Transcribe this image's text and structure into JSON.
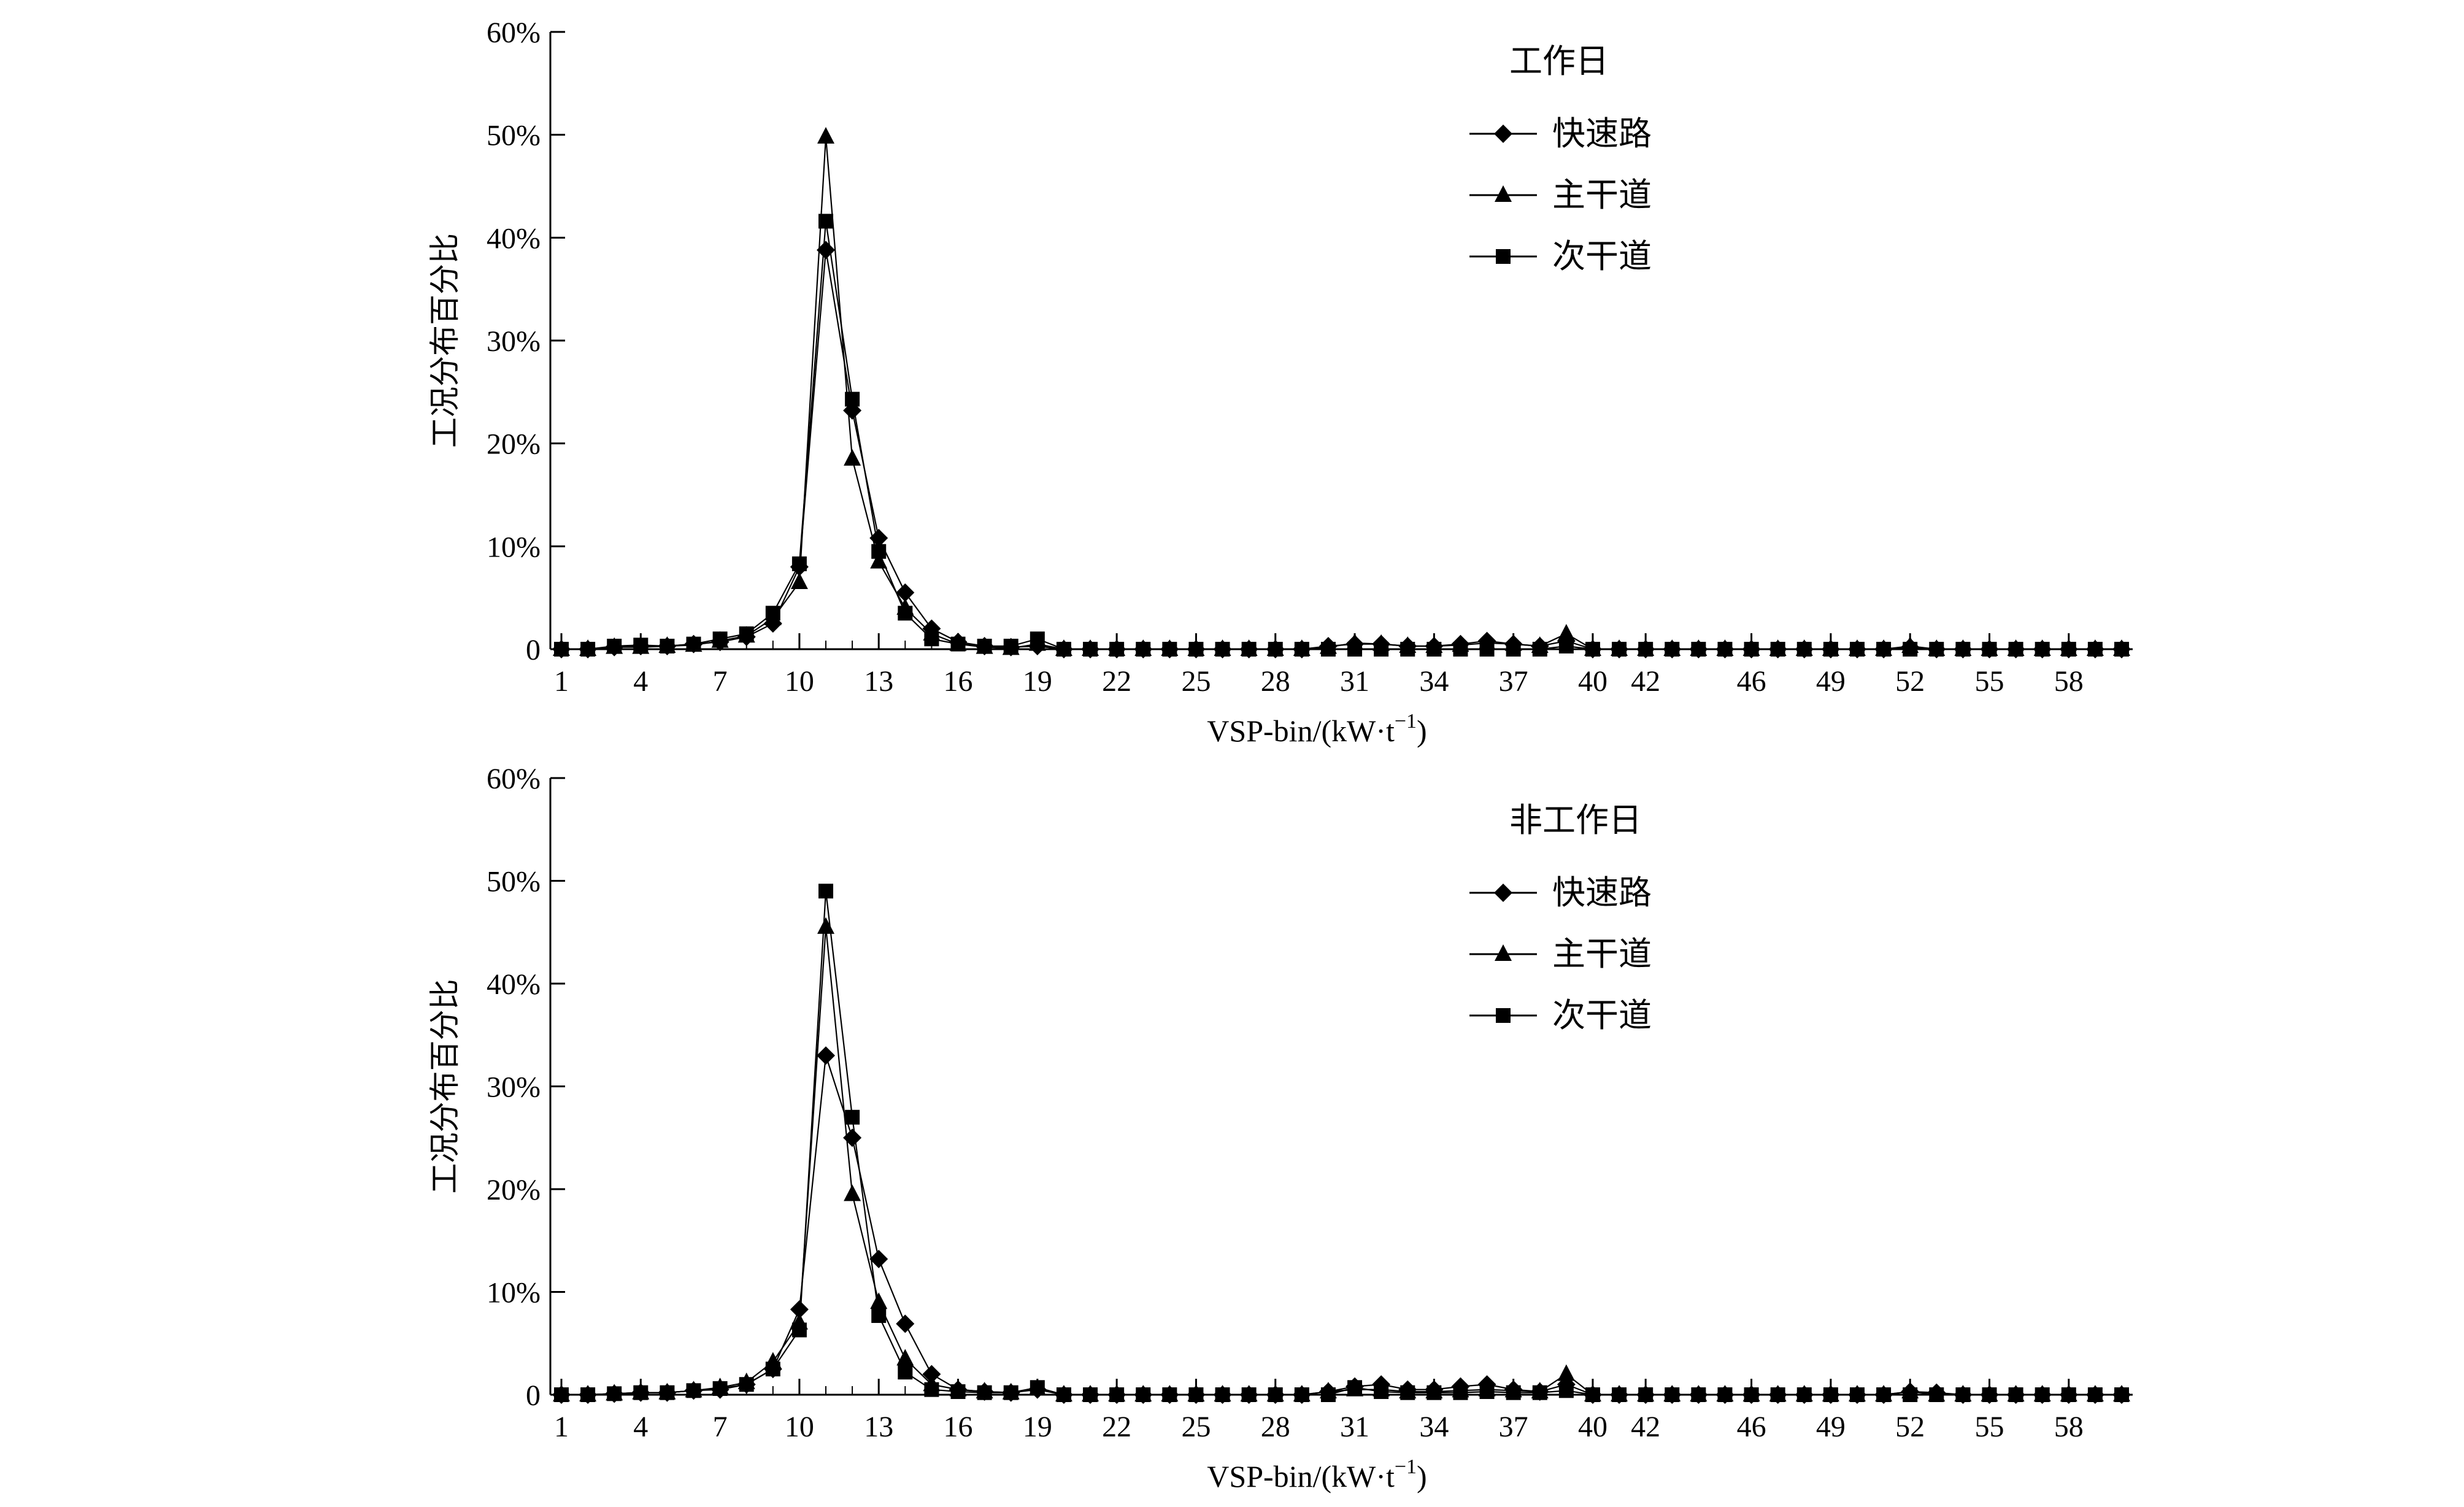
{
  "chart_data": [
    {
      "type": "line",
      "title": "",
      "legend_title": "工作日",
      "xlabel": "VSP-bin/(kW·t",
      "xlabel_sup": "−1",
      "xlabel_close": ")",
      "ylabel": "工况分布百分比",
      "xlim": [
        1,
        60
      ],
      "ylim": [
        0,
        60
      ],
      "x_ticks": [
        1,
        4,
        7,
        10,
        13,
        16,
        19,
        22,
        25,
        28,
        31,
        34,
        37,
        40,
        42,
        46,
        49,
        52,
        55,
        58
      ],
      "x_tick_labels": [
        "1",
        "4",
        "7",
        "10",
        "13",
        "16",
        "19",
        "22",
        "25",
        "28",
        "31",
        "34",
        "37",
        "40",
        "42",
        "46",
        "49",
        "52",
        "55",
        "58"
      ],
      "y_ticks": [
        0,
        10,
        20,
        30,
        40,
        50,
        60
      ],
      "y_tick_labels": [
        "0",
        "10%",
        "20%",
        "30%",
        "40%",
        "50%",
        "60%"
      ],
      "legend_position": "top-right",
      "grid": false,
      "series": [
        {
          "name": "快速路",
          "marker": "diamond",
          "values": [
            0,
            0,
            0.2,
            0.3,
            0.3,
            0.5,
            0.7,
            1.2,
            2.5,
            8,
            38.8,
            23.2,
            10.8,
            5.5,
            2,
            0.7,
            0.3,
            0.2,
            0.3,
            0,
            0,
            0,
            0,
            0,
            0,
            0,
            0,
            0,
            0,
            0.3,
            0.5,
            0.5,
            0.3,
            0.3,
            0.5,
            0.8,
            0.5,
            0.3,
            0.8,
            0,
            0,
            0,
            0,
            0,
            0,
            0,
            0,
            0,
            0,
            0,
            0,
            0.2,
            0,
            0,
            0,
            0,
            0,
            0,
            0,
            0
          ]
        },
        {
          "name": "主干道",
          "marker": "triangle",
          "values": [
            0,
            0,
            0.2,
            0.2,
            0.3,
            0.4,
            0.8,
            1.3,
            3,
            6.5,
            49.8,
            18.5,
            8.5,
            4,
            1.5,
            0.5,
            0.2,
            0.1,
            0.5,
            0,
            0,
            0,
            0,
            0,
            0,
            0,
            0,
            0,
            0,
            0.2,
            0.6,
            0.5,
            0.3,
            0.3,
            0.4,
            0.6,
            0.5,
            0.3,
            1.5,
            0,
            0,
            0,
            0,
            0,
            0,
            0,
            0,
            0,
            0,
            0,
            0,
            0.3,
            0,
            0,
            0,
            0,
            0,
            0,
            0,
            0
          ]
        },
        {
          "name": "次干道",
          "marker": "square",
          "values": [
            0,
            0,
            0.3,
            0.4,
            0.3,
            0.5,
            1,
            1.5,
            3.5,
            8.3,
            41.6,
            24.3,
            9.5,
            3.5,
            1,
            0.5,
            0.3,
            0.3,
            1,
            0,
            0,
            0,
            0,
            0,
            0,
            0,
            0,
            0,
            0,
            0,
            0,
            0,
            0,
            0,
            0,
            0,
            0,
            0,
            0.3,
            0,
            0,
            0,
            0,
            0,
            0,
            0,
            0,
            0,
            0,
            0,
            0,
            0,
            0,
            0,
            0,
            0,
            0,
            0,
            0,
            0
          ]
        }
      ]
    },
    {
      "type": "line",
      "title": "",
      "legend_title": "非工作日",
      "xlabel": "VSP-bin/(kW·t",
      "xlabel_sup": "−1",
      "xlabel_close": ")",
      "ylabel": "工况分布百分比",
      "xlim": [
        1,
        60
      ],
      "ylim": [
        0,
        60
      ],
      "x_ticks": [
        1,
        4,
        7,
        10,
        13,
        16,
        19,
        22,
        25,
        28,
        31,
        34,
        37,
        40,
        42,
        46,
        49,
        52,
        55,
        58
      ],
      "x_tick_labels": [
        "1",
        "4",
        "7",
        "10",
        "13",
        "16",
        "19",
        "22",
        "25",
        "28",
        "31",
        "34",
        "37",
        "40",
        "42",
        "46",
        "49",
        "52",
        "55",
        "58"
      ],
      "y_ticks": [
        0,
        10,
        20,
        30,
        40,
        50,
        60
      ],
      "y_tick_labels": [
        "0",
        "10%",
        "20%",
        "30%",
        "40%",
        "50%",
        "60%"
      ],
      "legend_position": "top-right",
      "grid": false,
      "series": [
        {
          "name": "快速路",
          "marker": "diamond",
          "values": [
            0,
            0,
            0.1,
            0.2,
            0.2,
            0.4,
            0.5,
            1,
            2.5,
            8.3,
            33,
            25,
            13.2,
            6.9,
            2,
            0.5,
            0.3,
            0.2,
            0.5,
            0,
            0,
            0,
            0,
            0,
            0,
            0,
            0,
            0,
            0,
            0.3,
            0.8,
            1,
            0.5,
            0.5,
            0.8,
            1,
            0.5,
            0.3,
            1,
            0,
            0,
            0,
            0,
            0,
            0,
            0,
            0,
            0,
            0,
            0,
            0,
            0.3,
            0.2,
            0,
            0,
            0,
            0,
            0,
            0,
            0
          ]
        },
        {
          "name": "主干道",
          "marker": "triangle",
          "values": [
            0,
            0,
            0.1,
            0.2,
            0.2,
            0.4,
            0.7,
            1.2,
            3.2,
            7,
            45.5,
            19.5,
            9,
            3.5,
            1,
            0.5,
            0.3,
            0.2,
            0.6,
            0,
            0,
            0,
            0,
            0,
            0,
            0,
            0,
            0,
            0,
            0.3,
            0.5,
            0.5,
            0.3,
            0.3,
            0.4,
            0.5,
            0.4,
            0.3,
            2,
            0,
            0,
            0,
            0,
            0,
            0,
            0,
            0,
            0,
            0,
            0,
            0,
            0.3,
            0,
            0,
            0,
            0,
            0,
            0,
            0,
            0
          ]
        },
        {
          "name": "次干道",
          "marker": "square",
          "values": [
            0,
            0,
            0.1,
            0.2,
            0.2,
            0.4,
            0.6,
            1,
            2.5,
            6.3,
            49,
            27,
            7.7,
            2.2,
            0.5,
            0.3,
            0.2,
            0.2,
            0.7,
            0,
            0,
            0,
            0,
            0,
            0,
            0,
            0,
            0,
            0,
            0,
            0.7,
            0.3,
            0.2,
            0.2,
            0.2,
            0.3,
            0.2,
            0.2,
            0.4,
            0,
            0,
            0,
            0,
            0,
            0,
            0,
            0,
            0,
            0,
            0,
            0,
            0,
            0,
            0,
            0,
            0,
            0,
            0,
            0,
            0
          ]
        }
      ]
    }
  ]
}
